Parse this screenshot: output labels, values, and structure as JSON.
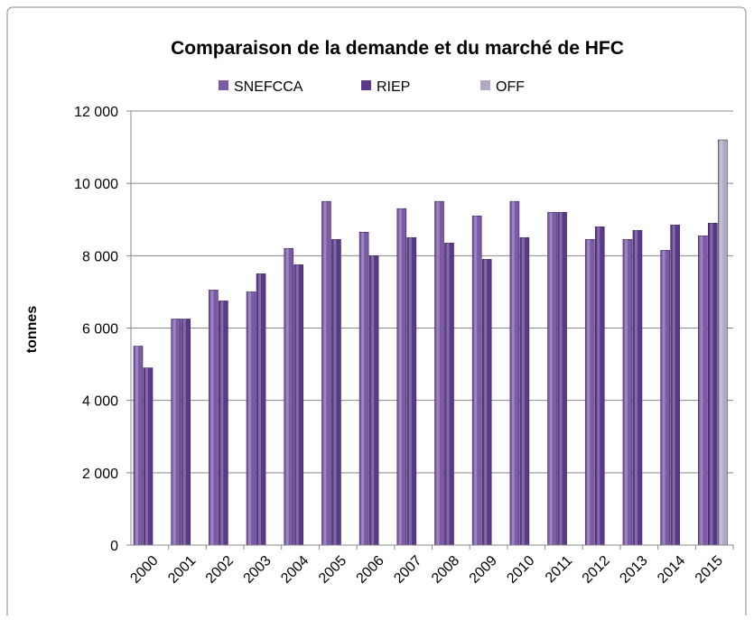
{
  "chart_data": {
    "type": "bar",
    "title": "Comparaison de la demande et du marché de HFC",
    "y_label": "tonnes",
    "categories": [
      "2000",
      "2001",
      "2002",
      "2003",
      "2004",
      "2005",
      "2006",
      "2007",
      "2008",
      "2009",
      "2010",
      "2011",
      "2012",
      "2013",
      "2014",
      "2015"
    ],
    "series": [
      {
        "name": "SNEFCCA",
        "color": "#7b5ba6",
        "values": [
          5500,
          6250,
          7050,
          7000,
          8200,
          9500,
          8650,
          9300,
          9500,
          9100,
          9500,
          9200,
          8450,
          8450,
          8150,
          8550
        ]
      },
      {
        "name": "RIEP",
        "color": "#5a3a88",
        "values": [
          4900,
          6250,
          6750,
          7500,
          7750,
          8450,
          8000,
          8500,
          8350,
          7900,
          8500,
          9200,
          8800,
          8700,
          8850,
          8900
        ]
      },
      {
        "name": "OFF",
        "color": "#b3a8c4",
        "values": [
          null,
          null,
          null,
          null,
          null,
          null,
          null,
          null,
          null,
          null,
          null,
          null,
          null,
          null,
          null,
          11200
        ]
      }
    ],
    "ylim": [
      0,
      12000
    ],
    "yticks": [
      0,
      {
        "value": 2000,
        "label": "2 000"
      },
      {
        "value": 4000,
        "label": "4 000"
      },
      {
        "value": 6000,
        "label": "6 000"
      },
      {
        "value": 8000,
        "label": "8 000"
      },
      {
        "value": 10000,
        "label": "10 000"
      },
      {
        "value": 12000,
        "label": "12 000"
      }
    ],
    "grid": true,
    "legend": "top"
  }
}
